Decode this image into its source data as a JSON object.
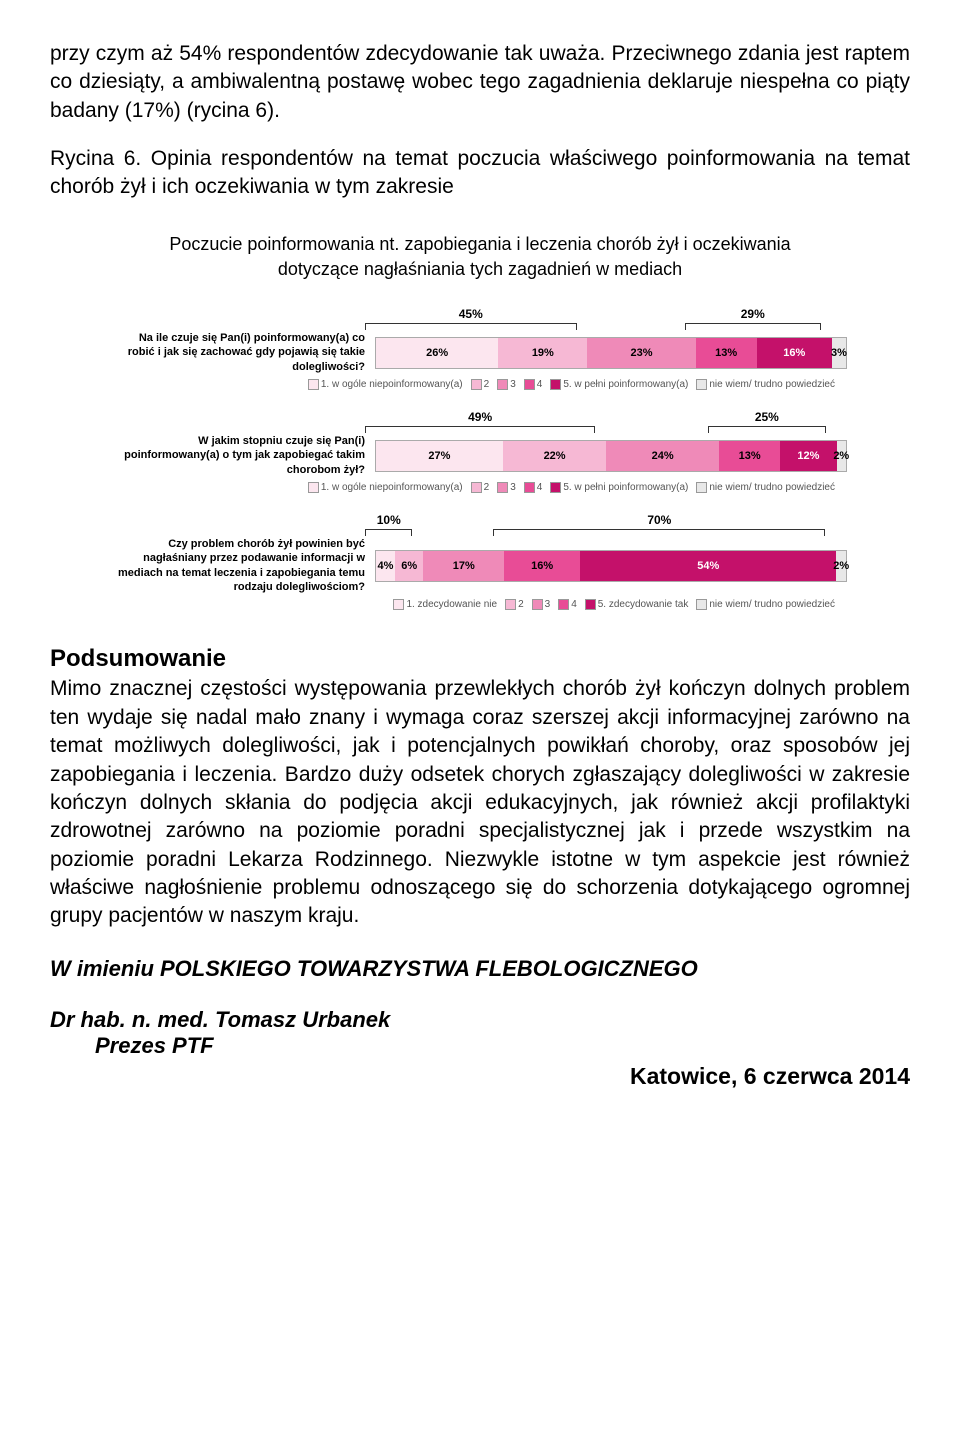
{
  "para1": "przy czym aż 54% respondentów zdecydowanie tak uważa. Przeciwnego zdania jest raptem co dziesiąty, a ambiwalentną postawę wobec tego zagadnienia deklaruje niespełna co piąty badany (17%) (rycina 6).",
  "para2": "Rycina 6. Opinia respondentów na temat poczucia właściwego poinformowania na temat chorób żył i ich oczekiwania w tym  zakresie",
  "chartTitle": "Poczucie poinformowania nt. zapobiegania i leczenia chorób żył i oczekiwania dotyczące nagłaśniania tych zagadnień w mediach",
  "colors": {
    "c1": "#fce6ef",
    "c2": "#f6b8d4",
    "c3": "#ef8ab8",
    "c4": "#e84c96",
    "c5": "#c4116a",
    "c6": "#e8e8e8"
  },
  "questionWidth": 255,
  "barWidth": 470,
  "charts": [
    {
      "question": "Na ile czuje się Pan(i) poinformowany(a) co robić i jak się zachować gdy pojawią się takie dolegliwości?",
      "brackets": [
        {
          "label": "45%",
          "span": [
            0,
            1
          ],
          "color": "#000"
        },
        {
          "label": "29%",
          "span": [
            3,
            4
          ],
          "color": "#000"
        }
      ],
      "segments": [
        {
          "v": 26,
          "c": "c1",
          "label": "26%"
        },
        {
          "v": 19,
          "c": "c2",
          "label": "19%"
        },
        {
          "v": 23,
          "c": "c3",
          "label": "23%"
        },
        {
          "v": 13,
          "c": "c4",
          "label": "13%"
        },
        {
          "v": 16,
          "c": "c5",
          "label": "16%"
        },
        {
          "v": 3,
          "c": "c6",
          "label": "3%"
        }
      ],
      "legend": [
        "1. w ogóle niepoinformowany(a)",
        "2",
        "3",
        "4",
        "5. w pełni poinformowany(a)",
        "nie wiem/ trudno powiedzieć"
      ]
    },
    {
      "question": "W jakim stopniu czuje się Pan(i) poinformowany(a) o tym jak zapobiegać takim chorobom żył?",
      "brackets": [
        {
          "label": "49%",
          "span": [
            0,
            1
          ],
          "color": "#000"
        },
        {
          "label": "25%",
          "span": [
            3,
            4
          ],
          "color": "#000"
        }
      ],
      "segments": [
        {
          "v": 27,
          "c": "c1",
          "label": "27%"
        },
        {
          "v": 22,
          "c": "c2",
          "label": "22%"
        },
        {
          "v": 24,
          "c": "c3",
          "label": "24%"
        },
        {
          "v": 13,
          "c": "c4",
          "label": "13%"
        },
        {
          "v": 12,
          "c": "c5",
          "label": "12%"
        },
        {
          "v": 2,
          "c": "c6",
          "label": "2%"
        }
      ],
      "legend": [
        "1. w ogóle niepoinformowany(a)",
        "2",
        "3",
        "4",
        "5. w pełni poinformowany(a)",
        "nie wiem/ trudno powiedzieć"
      ]
    },
    {
      "question": "Czy problem chorób żył powinien być nagłaśniany przez podawanie informacji w mediach na temat leczenia i zapobiegania temu rodzaju dolegliwościom?",
      "brackets": [
        {
          "label": "10%",
          "span": [
            0,
            1
          ],
          "color": "#000"
        },
        {
          "label": "70%",
          "span": [
            3,
            4
          ],
          "color": "#000"
        }
      ],
      "segments": [
        {
          "v": 4,
          "c": "c1",
          "label": "4%"
        },
        {
          "v": 6,
          "c": "c2",
          "label": "6%"
        },
        {
          "v": 17,
          "c": "c3",
          "label": "17%"
        },
        {
          "v": 16,
          "c": "c4",
          "label": "16%"
        },
        {
          "v": 54,
          "c": "c5",
          "label": "54%"
        },
        {
          "v": 2,
          "c": "c6",
          "label": "2%"
        }
      ],
      "legend": [
        "1. zdecydowanie nie",
        "2",
        "3",
        "4",
        "5. zdecydowanie tak",
        "nie wiem/ trudno powiedzieć"
      ]
    }
  ],
  "summaryHead": "Podsumowanie",
  "summary": "Mimo znacznej częstości występowania przewlekłych chorób żył kończyn dolnych problem ten wydaje się nadal mało znany i wymaga coraz szerszej akcji informacyjnej zarówno na temat możliwych dolegliwości, jak i potencjalnych powikłań choroby, oraz sposobów jej zapobiegania i leczenia. Bardzo duży odsetek chorych zgłaszający dolegliwości w zakresie kończyn dolnych skłania do podjęcia akcji edukacyjnych, jak również akcji profilaktyki zdrowotnej zarówno na poziomie poradni specjalistycznej jak i przede wszystkim na poziomie poradni Lekarza Rodzinnego. Niezwykle istotne  w tym aspekcie jest również właściwe nagłośnienie problemu odnoszącego się do schorzenia dotykającego ogromnej grupy pacjentów  w naszym kraju.",
  "onBehalf": "W imieniu POLSKIEGO TOWARZYSTWA FLEBOLOGICZNEGO",
  "sig1": "Dr hab. n. med. Tomasz Urbanek",
  "sig2": "Prezes PTF",
  "date": "Katowice, 6 czerwca 2014"
}
